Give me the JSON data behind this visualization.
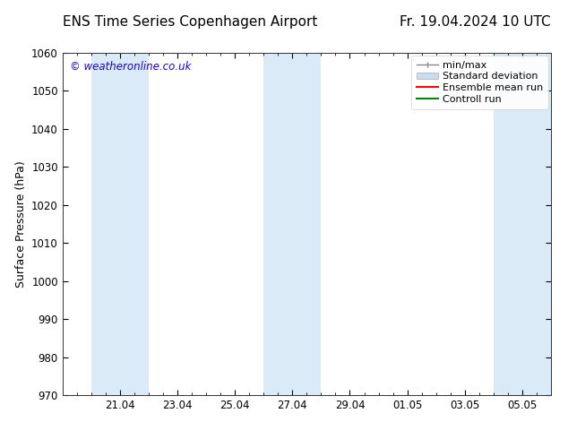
{
  "title_left": "ENS Time Series Copenhagen Airport",
  "title_right": "Fr. 19.04.2024 10 UTC",
  "ylabel": "Surface Pressure (hPa)",
  "ylim": [
    970,
    1060
  ],
  "yticks": [
    970,
    980,
    990,
    1000,
    1010,
    1020,
    1030,
    1040,
    1050,
    1060
  ],
  "watermark": "© weatheronline.co.uk",
  "watermark_color": "#1a00cc",
  "bg_color": "#ffffff",
  "plot_bg_color": "#ffffff",
  "shaded_color": "#daeaf7",
  "legend_items": [
    {
      "label": "min/max",
      "type": "minmax",
      "color": "#aaaaaa"
    },
    {
      "label": "Standard deviation",
      "type": "stddev",
      "color": "#c8ddf0"
    },
    {
      "label": "Ensemble mean run",
      "type": "line",
      "color": "#ff0000"
    },
    {
      "label": "Controll run",
      "type": "line",
      "color": "#008800"
    }
  ],
  "title_fontsize": 11,
  "tick_label_fontsize": 8.5,
  "ylabel_fontsize": 9,
  "legend_fontsize": 8,
  "start_date": "2024-04-19",
  "end_date": "2024-05-06",
  "shaded_bands_dates": [
    [
      "2024-04-20",
      "2024-04-22"
    ],
    [
      "2024-04-26",
      "2024-04-28"
    ],
    [
      "2024-05-04",
      "2024-05-06"
    ]
  ],
  "xtick_dates": [
    "2024-04-21",
    "2024-04-23",
    "2024-04-25",
    "2024-04-27",
    "2024-04-29",
    "2024-05-01",
    "2024-05-03",
    "2024-05-05"
  ],
  "xtick_labels": [
    "21.04",
    "23.04",
    "25.04",
    "27.04",
    "29.04",
    "01.05",
    "03.05",
    "05.05"
  ]
}
